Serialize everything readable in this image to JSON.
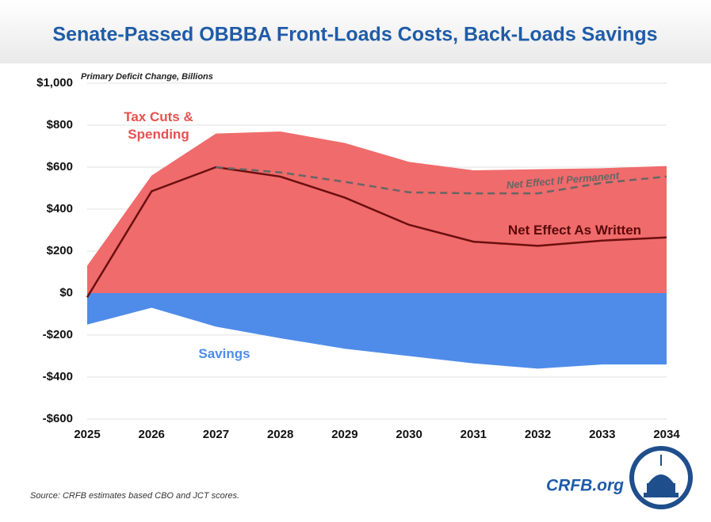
{
  "chart_data": {
    "type": "area",
    "title": "Senate-Passed OBBBA Front-Loads Costs, Back-Loads Savings",
    "y_axis_label": "Primary Deficit Change, Billions",
    "source": "Source: CRFB estimates based CBO and JCT scores.",
    "brand": "CRFB.org",
    "categories": [
      "2025",
      "2026",
      "2027",
      "2028",
      "2029",
      "2030",
      "2031",
      "2032",
      "2033",
      "2034"
    ],
    "ylim": [
      -600,
      1000
    ],
    "yticks": [
      {
        "value": -600,
        "label": "-$600"
      },
      {
        "value": -400,
        "label": "-$400"
      },
      {
        "value": -200,
        "label": "-$200"
      },
      {
        "value": 0,
        "label": "$0"
      },
      {
        "value": 200,
        "label": "$200"
      },
      {
        "value": 400,
        "label": "$400"
      },
      {
        "value": 600,
        "label": "$600"
      },
      {
        "value": 800,
        "label": "$800"
      },
      {
        "value": 1000,
        "label": "$1,000"
      }
    ],
    "grid": true,
    "series": [
      {
        "name": "Tax Cuts & Spending",
        "color": "#f06b6b",
        "label_color": "#e8504f",
        "mark": "area",
        "values": [
          130,
          560,
          760,
          770,
          715,
          625,
          585,
          590,
          595,
          605
        ]
      },
      {
        "name": "Savings",
        "color": "#4f8ce9",
        "label_color": "#4f8ce9",
        "mark": "area",
        "values": [
          -150,
          -70,
          -160,
          -215,
          -265,
          -300,
          -335,
          -360,
          -340,
          -340
        ]
      },
      {
        "name": "Net Effect As Written",
        "color": "#6b0f0f",
        "label_color": "#5a0a0a",
        "mark": "line",
        "dashed": false,
        "values": [
          -20,
          485,
          600,
          555,
          455,
          325,
          245,
          225,
          250,
          265
        ]
      },
      {
        "name": "Net Effect If Permanent",
        "color": "#666666",
        "label_color": "#666666",
        "mark": "line",
        "dashed": true,
        "values": [
          null,
          null,
          600,
          575,
          530,
          480,
          475,
          475,
          525,
          555
        ]
      }
    ]
  }
}
